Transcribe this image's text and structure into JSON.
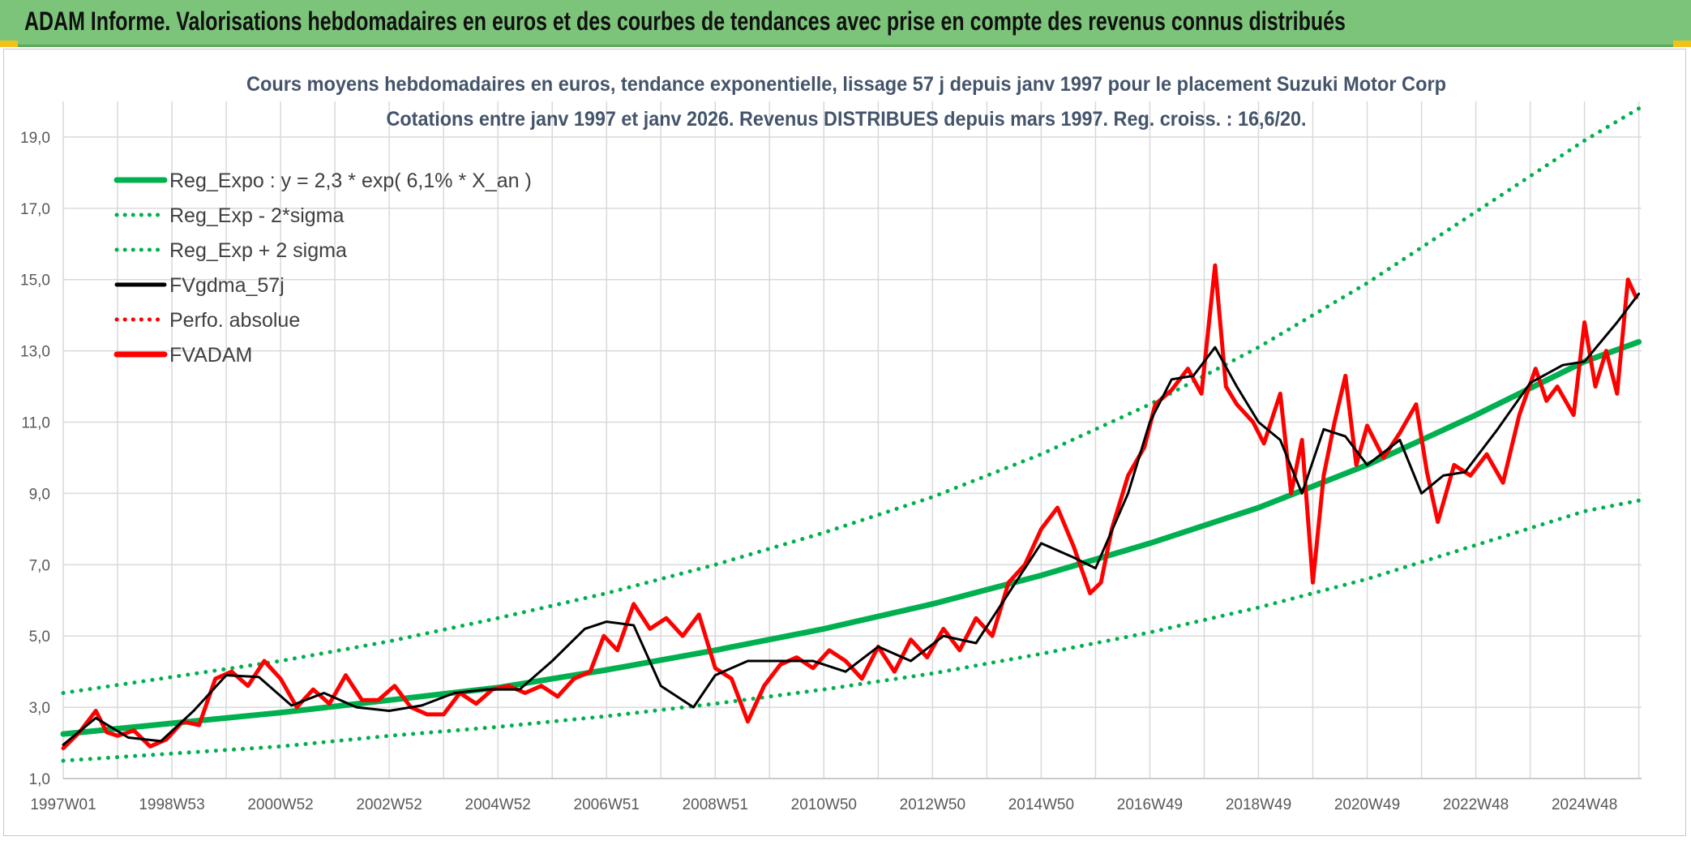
{
  "banner": {
    "title": "ADAM Informe. Valorisations hebdomadaires en euros et des courbes de tendances avec prise en compte des revenus connus distribués",
    "accent": "#7cc47a",
    "corner_color": "#f2c21a"
  },
  "chart_data": {
    "type": "line",
    "title": "Cours moyens hebdomadaires en euros, tendance exponentielle, lissage 57 j depuis janv 1997 pour le placement Suzuki Motor Corp",
    "subtitle": "Cotations entre janv 1997 et janv 2026. Revenus DISTRIBUES depuis mars 1997. Reg. croiss. : 16,6/20.",
    "xlabel": "",
    "ylabel": "",
    "x_range": [
      1997.0,
      2026.05
    ],
    "ylim": [
      1.0,
      20.0
    ],
    "y_ticks": [
      "1,0",
      "3,0",
      "5,0",
      "7,0",
      "9,0",
      "11,0",
      "13,0",
      "15,0",
      "17,0",
      "19,0"
    ],
    "x_tick_labels": [
      "1997W01",
      "1998W53",
      "2000W52",
      "2002W52",
      "2004W52",
      "2006W51",
      "2008W51",
      "2010W50",
      "2012W50",
      "2014W50",
      "2016W49",
      "2018W49",
      "2020W49",
      "2022W48",
      "2024W48"
    ],
    "x_tick_years": [
      1997.0,
      1999.0,
      2001.0,
      2003.0,
      2005.0,
      2007.0,
      2009.0,
      2011.0,
      2013.0,
      2015.0,
      2017.0,
      2019.0,
      2021.0,
      2023.0,
      2025.0
    ],
    "grid": true,
    "legend_position": "top-left",
    "legend": [
      {
        "label": "Reg_Expo : y = 2,3 * exp( 6,1% *  X_an )",
        "color": "#00b050",
        "style": "solid-thick"
      },
      {
        "label": "Reg_Exp - 2*sigma",
        "color": "#00b050",
        "style": "dotted"
      },
      {
        "label": "Reg_Exp + 2 sigma",
        "color": "#00b050",
        "style": "dotted"
      },
      {
        "label": "FVgdma_57j",
        "color": "#000000",
        "style": "solid"
      },
      {
        "label": "Perfo. absolue",
        "color": "#ff0000",
        "style": "dotted"
      },
      {
        "label": "FVADAM",
        "color": "#ff0000",
        "style": "solid-thick"
      }
    ],
    "series": [
      {
        "name": "Reg_Expo : y = 2,3 * exp( 6,1% *  X_an )",
        "x": [
          1997,
          1999,
          2001,
          2003,
          2005,
          2007,
          2009,
          2011,
          2013,
          2015,
          2017,
          2019,
          2021,
          2023,
          2025,
          2026
        ],
        "values": [
          2.25,
          2.55,
          2.85,
          3.2,
          3.55,
          4.05,
          4.6,
          5.2,
          5.9,
          6.7,
          7.6,
          8.6,
          9.8,
          11.2,
          12.7,
          13.25
        ]
      },
      {
        "name": "Reg_Exp - 2*sigma",
        "x": [
          1997,
          1999,
          2001,
          2003,
          2005,
          2007,
          2009,
          2011,
          2013,
          2015,
          2017,
          2019,
          2021,
          2023,
          2025,
          2026
        ],
        "values": [
          1.5,
          1.7,
          1.9,
          2.2,
          2.45,
          2.75,
          3.1,
          3.5,
          3.95,
          4.5,
          5.1,
          5.8,
          6.6,
          7.55,
          8.5,
          8.8
        ]
      },
      {
        "name": "Reg_Exp + 2 sigma",
        "x": [
          1997,
          1999,
          2001,
          2003,
          2005,
          2007,
          2009,
          2011,
          2013,
          2015,
          2017,
          2019,
          2021,
          2023,
          2025,
          2026
        ],
        "values": [
          3.4,
          3.85,
          4.3,
          4.85,
          5.5,
          6.2,
          7.0,
          7.9,
          8.9,
          10.1,
          11.5,
          13.1,
          14.9,
          16.9,
          18.9,
          19.8
        ]
      },
      {
        "name": "FVgdma_57j",
        "x": [
          1997.0,
          1997.6,
          1998.2,
          1998.8,
          1999.4,
          2000.0,
          2000.6,
          2001.2,
          2001.8,
          2002.4,
          2003.0,
          2003.6,
          2004.2,
          2004.8,
          2005.4,
          2006.0,
          2006.6,
          2007.0,
          2007.5,
          2008.0,
          2008.6,
          2009.0,
          2009.6,
          2010.2,
          2010.8,
          2011.4,
          2012.0,
          2012.6,
          2013.2,
          2013.8,
          2014.4,
          2015.0,
          2015.6,
          2016.0,
          2016.6,
          2017.0,
          2017.4,
          2017.8,
          2018.2,
          2018.6,
          2019.0,
          2019.4,
          2019.8,
          2020.2,
          2020.6,
          2021.0,
          2021.6,
          2022.0,
          2022.4,
          2022.8,
          2023.4,
          2024.0,
          2024.6,
          2025.0,
          2025.6,
          2026.0
        ],
        "values": [
          1.95,
          2.7,
          2.15,
          2.05,
          2.9,
          3.9,
          3.85,
          3.05,
          3.4,
          3.0,
          2.9,
          3.05,
          3.4,
          3.5,
          3.5,
          4.3,
          5.2,
          5.4,
          5.3,
          3.6,
          3.0,
          3.9,
          4.3,
          4.3,
          4.3,
          4.0,
          4.7,
          4.3,
          5.0,
          4.8,
          6.2,
          7.6,
          7.2,
          6.9,
          9.0,
          11.0,
          12.2,
          12.3,
          13.1,
          12.0,
          11.0,
          10.5,
          9.0,
          10.8,
          10.6,
          9.8,
          10.5,
          9.0,
          9.5,
          9.6,
          10.8,
          12.1,
          12.6,
          12.7,
          13.8,
          14.6
        ]
      },
      {
        "name": "FVADAM",
        "x": [
          1997.0,
          1997.3,
          1997.6,
          1997.8,
          1998.0,
          1998.3,
          1998.6,
          1998.9,
          1999.2,
          1999.5,
          1999.8,
          2000.1,
          2000.4,
          2000.7,
          2001.0,
          2001.3,
          2001.6,
          2001.9,
          2002.2,
          2002.5,
          2002.8,
          2003.1,
          2003.4,
          2003.7,
          2004.0,
          2004.3,
          2004.6,
          2004.9,
          2005.2,
          2005.5,
          2005.8,
          2006.1,
          2006.4,
          2006.7,
          2006.95,
          2007.2,
          2007.5,
          2007.8,
          2008.1,
          2008.4,
          2008.7,
          2009.0,
          2009.3,
          2009.6,
          2009.9,
          2010.2,
          2010.5,
          2010.8,
          2011.1,
          2011.4,
          2011.7,
          2012.0,
          2012.3,
          2012.6,
          2012.9,
          2013.2,
          2013.5,
          2013.8,
          2014.1,
          2014.4,
          2014.7,
          2015.0,
          2015.3,
          2015.6,
          2015.9,
          2016.1,
          2016.3,
          2016.6,
          2016.9,
          2017.1,
          2017.4,
          2017.7,
          2017.95,
          2018.2,
          2018.4,
          2018.6,
          2018.9,
          2019.1,
          2019.4,
          2019.6,
          2019.8,
          2020.0,
          2020.2,
          2020.4,
          2020.6,
          2020.8,
          2021.0,
          2021.3,
          2021.6,
          2021.9,
          2022.1,
          2022.3,
          2022.6,
          2022.9,
          2023.2,
          2023.5,
          2023.8,
          2024.1,
          2024.3,
          2024.5,
          2024.8,
          2025.0,
          2025.2,
          2025.4,
          2025.6,
          2025.8,
          2025.95
        ],
        "values": [
          1.85,
          2.3,
          2.9,
          2.3,
          2.2,
          2.35,
          1.9,
          2.1,
          2.6,
          2.5,
          3.8,
          4.0,
          3.6,
          4.3,
          3.8,
          3.0,
          3.5,
          3.1,
          3.9,
          3.2,
          3.2,
          3.6,
          3.0,
          2.8,
          2.8,
          3.4,
          3.1,
          3.5,
          3.6,
          3.4,
          3.6,
          3.3,
          3.8,
          4.0,
          5.0,
          4.6,
          5.9,
          5.2,
          5.5,
          5.0,
          5.6,
          4.1,
          3.8,
          2.6,
          3.6,
          4.2,
          4.4,
          4.1,
          4.6,
          4.3,
          3.8,
          4.7,
          4.0,
          4.9,
          4.4,
          5.2,
          4.6,
          5.5,
          5.0,
          6.5,
          7.0,
          8.0,
          8.6,
          7.5,
          6.2,
          6.5,
          8.0,
          9.5,
          10.3,
          11.5,
          11.9,
          12.5,
          11.8,
          15.4,
          12.0,
          11.5,
          11.0,
          10.4,
          11.8,
          9.0,
          10.5,
          6.5,
          9.5,
          11.0,
          12.3,
          9.8,
          10.9,
          10.0,
          10.7,
          11.5,
          9.6,
          8.2,
          9.8,
          9.5,
          10.1,
          9.3,
          11.2,
          12.5,
          11.6,
          12.0,
          11.2,
          13.8,
          12.0,
          13.0,
          11.8,
          15.0,
          14.5
        ]
      }
    ]
  }
}
